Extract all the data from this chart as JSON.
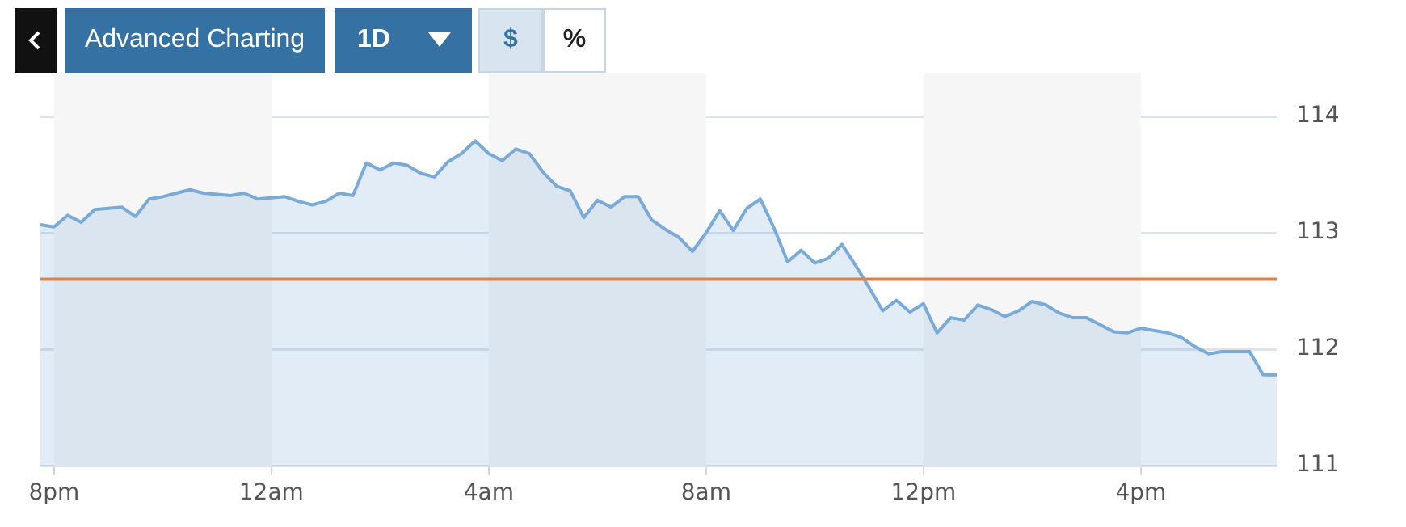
{
  "chart_data": {
    "type": "area",
    "annotations": [
      "Advanced Charting",
      "1D",
      "$",
      "%"
    ],
    "categories": [
      null,
      "8pm",
      null,
      null,
      null,
      null,
      null,
      null,
      null,
      null,
      null,
      null,
      null,
      null,
      null,
      null,
      null,
      "12am",
      null,
      null,
      null,
      null,
      null,
      null,
      null,
      null,
      null,
      null,
      null,
      null,
      null,
      null,
      null,
      "4am",
      null,
      null,
      null,
      null,
      null,
      null,
      null,
      null,
      null,
      null,
      null,
      null,
      null,
      null,
      null,
      "8am",
      null,
      null,
      null,
      null,
      null,
      null,
      null,
      null,
      null,
      null,
      null,
      null,
      null,
      null,
      null,
      "12pm",
      null,
      null,
      null,
      null,
      null,
      null,
      null,
      null,
      null,
      null,
      null,
      null,
      null,
      null,
      null,
      "4pm",
      null,
      null,
      null,
      null,
      null,
      null,
      null,
      null,
      null,
      null
    ],
    "series": [
      {
        "color": "#7aaad8",
        "values": [
          113.07,
          113.05,
          113.15,
          113.09,
          113.2,
          113.21,
          113.22,
          113.14,
          113.29,
          113.31,
          113.34,
          113.37,
          113.34,
          113.33,
          113.32,
          113.34,
          113.29,
          113.3,
          113.31,
          113.27,
          113.24,
          113.27,
          113.34,
          113.32,
          113.6,
          113.54,
          113.6,
          113.58,
          113.51,
          113.48,
          113.61,
          113.68,
          113.79,
          113.68,
          113.62,
          113.72,
          113.68,
          113.52,
          113.4,
          113.36,
          113.13,
          113.28,
          113.22,
          113.31,
          113.31,
          113.11,
          113.03,
          112.96,
          112.84,
          113.0,
          113.19,
          113.02,
          113.21,
          113.29,
          113.04,
          112.75,
          112.85,
          112.74,
          112.78,
          112.9,
          112.72,
          112.53,
          112.33,
          112.42,
          112.32,
          112.39,
          112.14,
          112.27,
          112.25,
          112.38,
          112.34,
          112.28,
          112.33,
          112.41,
          112.38,
          112.31,
          112.27,
          112.27,
          112.21,
          112.15,
          112.14,
          112.18,
          112.16,
          112.14,
          112.1,
          112.02,
          111.96,
          111.98,
          111.98,
          111.98,
          111.78,
          111.78
        ]
      }
    ],
    "ylim": [
      111,
      114
    ],
    "yticks": [
      111,
      112,
      113,
      114
    ],
    "ref_lines": [
      {
        "axis": "y",
        "value": 112.6,
        "color": "#d9834f"
      }
    ],
    "bands": [
      {
        "axis": "x",
        "from": "8pm",
        "to": "12am",
        "color": "#f6f6f6"
      },
      {
        "axis": "x",
        "from": "4am",
        "to": "8am",
        "color": "#f6f6f6"
      },
      {
        "axis": "x",
        "from": "12pm",
        "to": "4pm",
        "color": "#f6f6f6"
      }
    ],
    "grid": "y",
    "legend": false,
    "marker": "none",
    "line_style": "solid"
  }
}
